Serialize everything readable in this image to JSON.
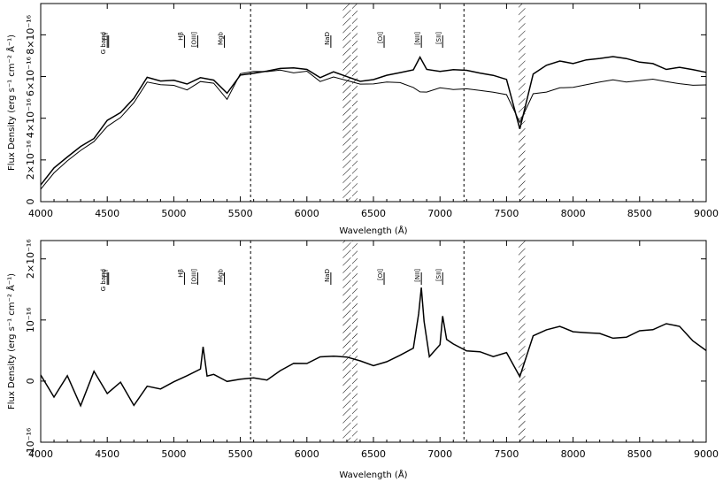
{
  "chart_data": [
    {
      "type": "line",
      "xlabel": "Wavelength (Å)",
      "ylabel": "Flux Density (erg s⁻¹ cm⁻² Å⁻¹)",
      "xlim": [
        4000,
        9000
      ],
      "ylim": [
        0,
        9.5e-16
      ],
      "x_ticks": [
        4000,
        4500,
        5000,
        5500,
        6000,
        6500,
        7000,
        7500,
        8000,
        8500,
        9000
      ],
      "x_tick_labels": [
        "4000",
        "4500",
        "5000",
        "5500",
        "6000",
        "6500",
        "7000",
        "7500",
        "8000",
        "8500",
        "9000"
      ],
      "y_ticks": [
        0,
        2e-16,
        4e-16,
        6e-16,
        8e-16
      ],
      "y_tick_labels": [
        "0",
        "2×10⁻¹⁶",
        "4×10⁻¹⁶",
        "6×10⁻¹⁶",
        "8×10⁻¹⁶"
      ],
      "grid": false,
      "series": [
        {
          "x": [
            4000,
            4100,
            4200,
            4300,
            4400,
            4500,
            4600,
            4700,
            4800,
            4900,
            5000,
            5100,
            5200,
            5300,
            5400,
            5500,
            5600,
            5700,
            5800,
            5900,
            6000,
            6100,
            6200,
            6300,
            6400,
            6500,
            6600,
            6700,
            6800,
            6850,
            6900,
            7000,
            7100,
            7200,
            7300,
            7400,
            7500,
            7600,
            7700,
            7800,
            7900,
            8000,
            8100,
            8200,
            8300,
            8400,
            8500,
            8600,
            8700,
            8800,
            8900,
            9000
          ],
          "y": [
            8e-17,
            1.6e-16,
            2.1e-16,
            2.6e-16,
            3e-16,
            3.9e-16,
            4.3e-16,
            5e-16,
            6e-16,
            5.8e-16,
            5.8e-16,
            5.6e-16,
            5.9e-16,
            5.8e-16,
            5.2e-16,
            6.1e-16,
            6.2e-16,
            6.3e-16,
            6.4e-16,
            6.4e-16,
            6.3e-16,
            5.9e-16,
            6.2e-16,
            6e-16,
            5.8e-16,
            5.9e-16,
            6.1e-16,
            6.2e-16,
            6.3e-16,
            6.9e-16,
            6.3e-16,
            6.2e-16,
            6.3e-16,
            6.3e-16,
            6.2e-16,
            6.1e-16,
            5.9e-16,
            3.5e-16,
            6.1e-16,
            6.5e-16,
            6.7e-16,
            6.6e-16,
            6.8e-16,
            6.9e-16,
            7e-16,
            6.9e-16,
            6.7e-16,
            6.6e-16,
            6.3e-16,
            6.4e-16,
            6.3e-16,
            6.2e-16
          ]
        },
        {
          "x": [
            4000,
            4100,
            4200,
            4300,
            4400,
            4500,
            4600,
            4700,
            4800,
            4900,
            5000,
            5100,
            5200,
            5300,
            5400,
            5500,
            5600,
            5700,
            5800,
            5900,
            6000,
            6100,
            6200,
            6300,
            6400,
            6500,
            6600,
            6700,
            6800,
            6850,
            6900,
            7000,
            7100,
            7200,
            7300,
            7400,
            7500,
            7600,
            7700,
            7800,
            7900,
            8000,
            8100,
            8200,
            8300,
            8400,
            8500,
            8600,
            8700,
            8800,
            8900,
            9000
          ],
          "y": [
            6e-17,
            1.4e-16,
            2e-16,
            2.5e-16,
            2.9e-16,
            3.6e-16,
            4e-16,
            4.7e-16,
            5.7e-16,
            5.6e-16,
            5.6e-16,
            5.4e-16,
            5.8e-16,
            5.7e-16,
            4.9e-16,
            6.1e-16,
            6.2e-16,
            6.2e-16,
            6.3e-16,
            6.2e-16,
            6.3e-16,
            5.8e-16,
            6e-16,
            5.8e-16,
            5.6e-16,
            5.6e-16,
            5.7e-16,
            5.7e-16,
            5.5e-16,
            5.3e-16,
            5.3e-16,
            5.5e-16,
            5.4e-16,
            5.4e-16,
            5.3e-16,
            5.2e-16,
            5.1e-16,
            3.8e-16,
            5.2e-16,
            5.3e-16,
            5.5e-16,
            5.5e-16,
            5.6e-16,
            5.7e-16,
            5.8e-16,
            5.7e-16,
            5.8e-16,
            5.9e-16,
            5.8e-16,
            5.7e-16,
            5.6e-16,
            5.6e-16
          ]
        }
      ],
      "line_labels": [
        {
          "x": 4500,
          "label": "G band"
        },
        {
          "x": 4510,
          "label": "Hγ"
        },
        {
          "x": 5080,
          "label": "Hβ"
        },
        {
          "x": 5180,
          "label": "[OIII]"
        },
        {
          "x": 5380,
          "label": "Mgb"
        },
        {
          "x": 6180,
          "label": "NaD"
        },
        {
          "x": 6580,
          "label": "[OI]"
        },
        {
          "x": 6860,
          "label": "[NII]"
        },
        {
          "x": 7020,
          "label": "[SII]"
        }
      ],
      "bands": [
        {
          "type": "dotted",
          "x": 5577
        },
        {
          "type": "hatched",
          "from": 6270,
          "to": 6330
        },
        {
          "type": "hatched",
          "from": 6340,
          "to": 6380
        },
        {
          "type": "dotted",
          "x": 7180
        },
        {
          "type": "hatched",
          "from": 7590,
          "to": 7640
        }
      ]
    },
    {
      "type": "line",
      "xlabel": "Wavelength (Å)",
      "ylabel": "Flux Density (erg s⁻¹ cm⁻² Å⁻¹)",
      "xlim": [
        4000,
        9000
      ],
      "ylim": [
        -1e-16,
        2.3e-16
      ],
      "x_ticks": [
        4000,
        4500,
        5000,
        5500,
        6000,
        6500,
        7000,
        7500,
        8000,
        8500,
        9000
      ],
      "x_tick_labels": [
        "4000",
        "4500",
        "5000",
        "5500",
        "6000",
        "6500",
        "7000",
        "7500",
        "8000",
        "8500",
        "9000"
      ],
      "y_ticks": [
        -1e-16,
        0,
        1e-16,
        2e-16
      ],
      "y_tick_labels": [
        "-10⁻¹⁶",
        "0",
        "10⁻¹⁶",
        "2×10⁻¹⁶"
      ],
      "grid": false,
      "series": [
        {
          "x": [
            4000,
            4100,
            4200,
            4300,
            4400,
            4500,
            4600,
            4700,
            4800,
            4900,
            5000,
            5100,
            5200,
            5220,
            5250,
            5300,
            5400,
            5500,
            5600,
            5700,
            5800,
            5900,
            6000,
            6100,
            6200,
            6300,
            6400,
            6500,
            6600,
            6700,
            6800,
            6840,
            6860,
            6880,
            6920,
            7000,
            7020,
            7050,
            7100,
            7200,
            7300,
            7400,
            7500,
            7600,
            7700,
            7800,
            7900,
            8000,
            8100,
            8200,
            8300,
            8400,
            8500,
            8600,
            8700,
            8800,
            8900,
            9000
          ],
          "y": [
            1e-17,
            -3e-17,
            0.0,
            -5e-17,
            1e-17,
            -2e-17,
            5e-18,
            -3e-17,
            0.0,
            -1e-17,
            -5e-18,
            0.0,
            1e-17,
            5e-17,
            0.0,
            5e-18,
            0.0,
            1e-17,
            1.5e-17,
            1e-17,
            2e-17,
            2.5e-17,
            2e-17,
            3e-17,
            3.5e-17,
            4e-17,
            4e-17,
            3.5e-17,
            4e-17,
            4.5e-17,
            5e-17,
            1.2e-16,
            1.55e-16,
            9e-17,
            4e-17,
            5e-17,
            1e-16,
            6e-17,
            5.5e-17,
            5e-17,
            5.5e-17,
            5e-17,
            5.5e-17,
            1e-17,
            7e-17,
            7.5e-17,
            8e-17,
            7.5e-17,
            8e-17,
            8.5e-17,
            8e-17,
            8e-17,
            8.5e-17,
            8e-17,
            8.5e-17,
            8e-17,
            6e-17,
            5e-17
          ]
        }
      ],
      "line_labels": [
        {
          "x": 4500,
          "label": "G band"
        },
        {
          "x": 4510,
          "label": "Hγ"
        },
        {
          "x": 5080,
          "label": "Hβ"
        },
        {
          "x": 5180,
          "label": "[OIII]"
        },
        {
          "x": 5380,
          "label": "Mgb"
        },
        {
          "x": 6180,
          "label": "NaD"
        },
        {
          "x": 6580,
          "label": "[OI]"
        },
        {
          "x": 6860,
          "label": "[NII]"
        },
        {
          "x": 7020,
          "label": "[SII]"
        }
      ],
      "bands": [
        {
          "type": "dotted",
          "x": 5577
        },
        {
          "type": "hatched",
          "from": 6270,
          "to": 6330
        },
        {
          "type": "hatched",
          "from": 6340,
          "to": 6380
        },
        {
          "type": "dotted",
          "x": 7180
        },
        {
          "type": "hatched",
          "from": 7590,
          "to": 7640
        }
      ]
    }
  ]
}
